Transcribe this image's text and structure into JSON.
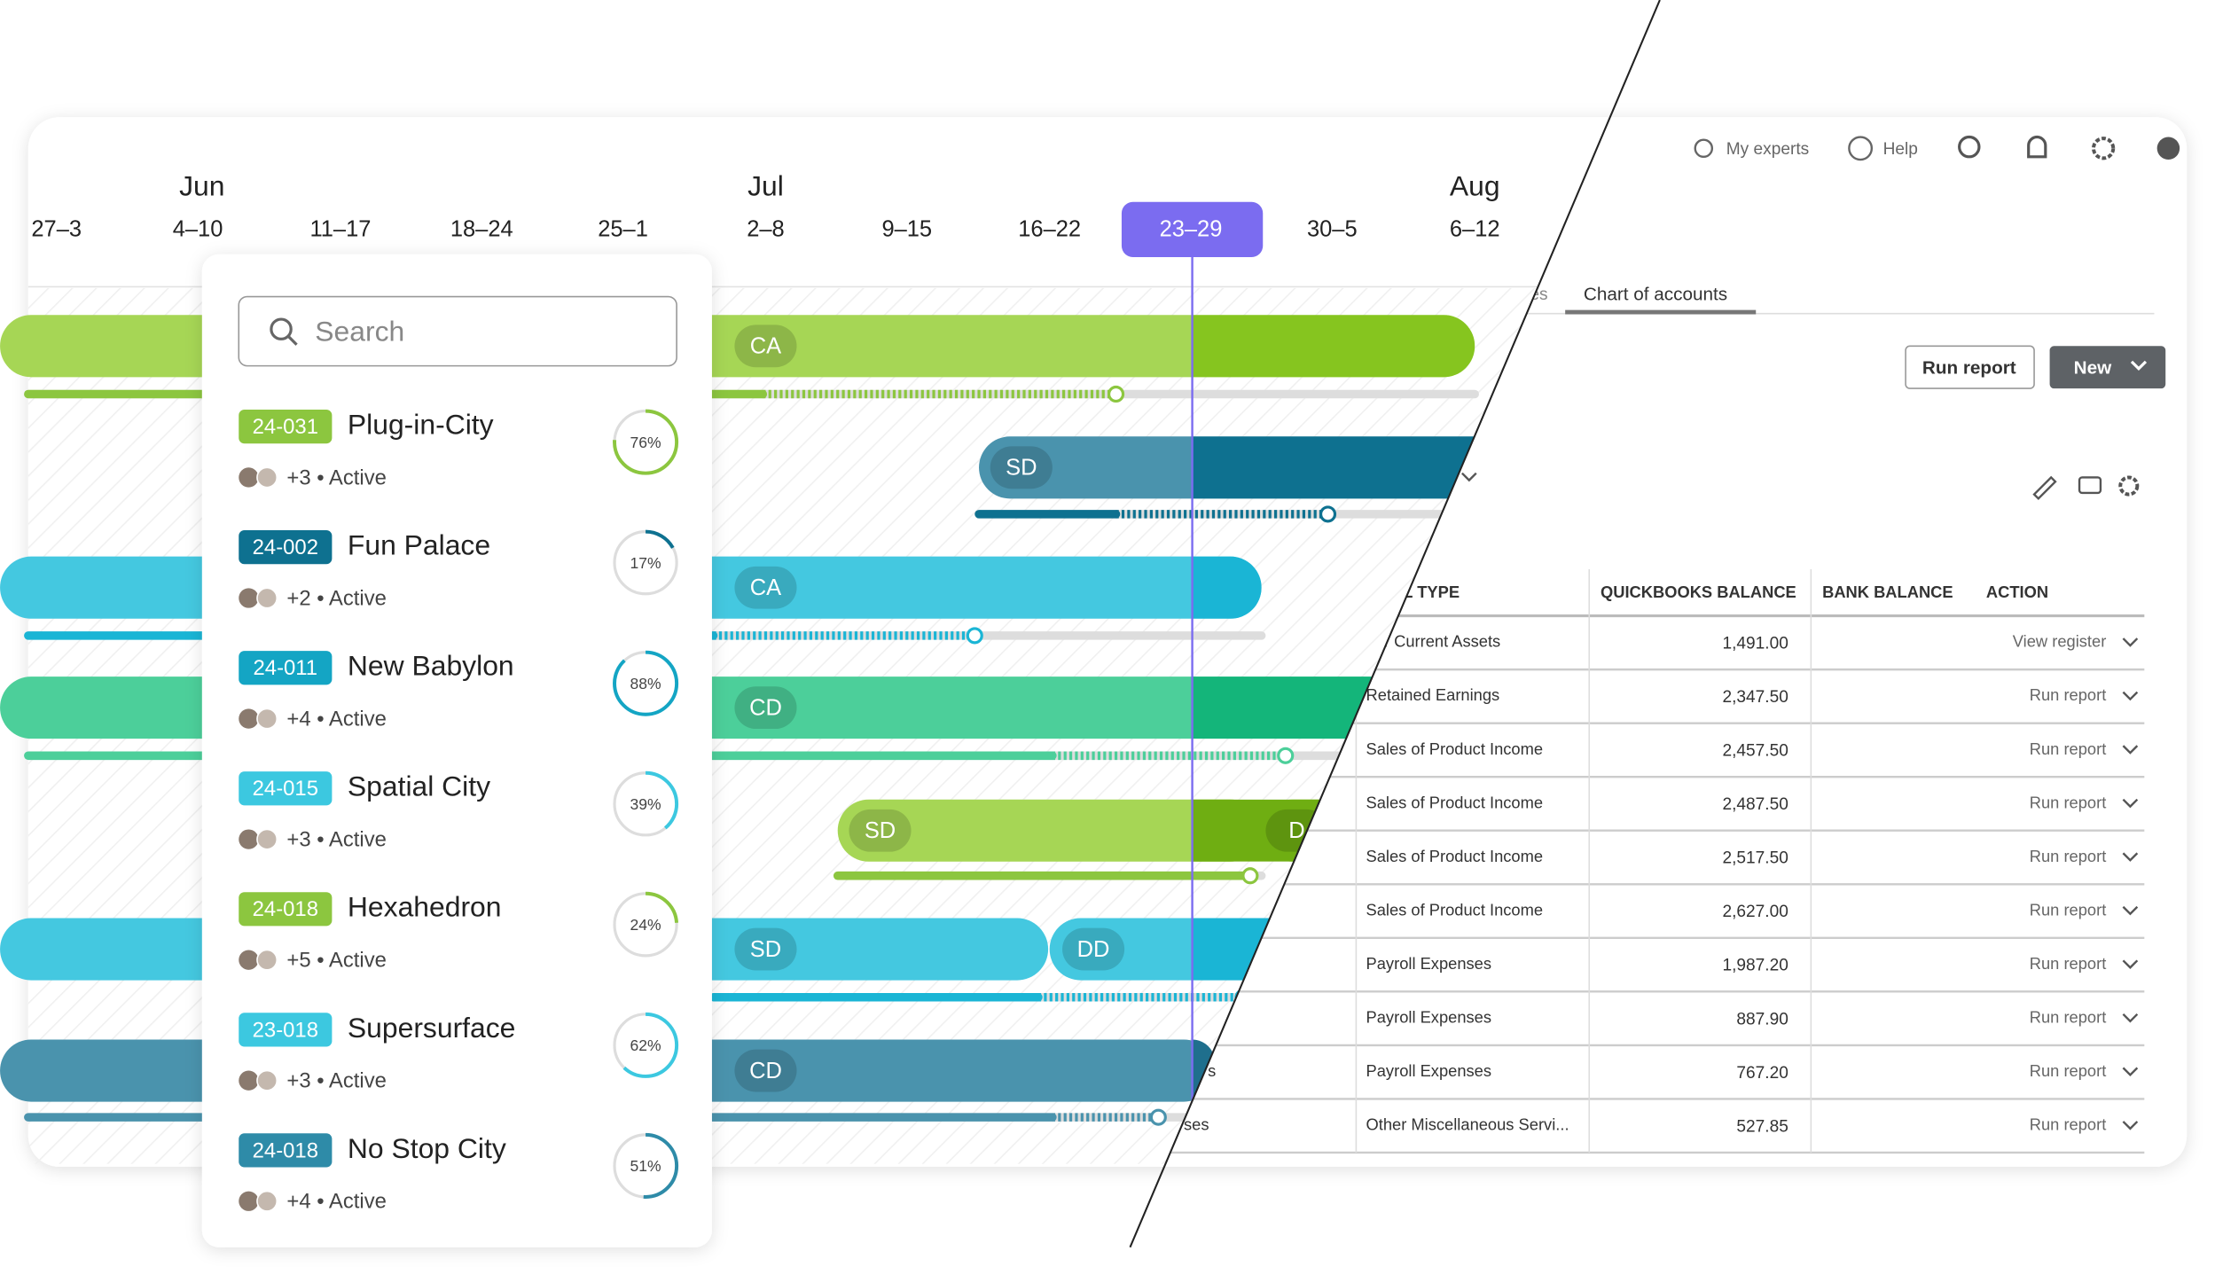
{
  "timeline": {
    "months": [
      "Jun",
      "Jul",
      "Aug"
    ],
    "weeks": [
      "27–3",
      "4–10",
      "11–17",
      "18–24",
      "25–1",
      "2–8",
      "9–15",
      "16–22",
      "23–29",
      "30–5",
      "6–12"
    ]
  },
  "gantt_labels": [
    "CA",
    "SD",
    "CA",
    "CD",
    "SD",
    "D",
    "SD",
    "DD",
    "CD"
  ],
  "search_placeholder": "Search",
  "projects": [
    {
      "code": "24-031",
      "name": "Plug-in-City",
      "meta": "+3 • Active",
      "progress": 76,
      "progress_label": "76%"
    },
    {
      "code": "24-002",
      "name": "Fun Palace",
      "meta": "+2 • Active",
      "progress": 17,
      "progress_label": "17%"
    },
    {
      "code": "24-011",
      "name": "New Babylon",
      "meta": "+4 • Active",
      "progress": 88,
      "progress_label": "88%"
    },
    {
      "code": "24-015",
      "name": "Spatial City",
      "meta": "+3 • Active",
      "progress": 39,
      "progress_label": "39%"
    },
    {
      "code": "24-018",
      "name": "Hexahedron",
      "meta": "+5 • Active",
      "progress": 24,
      "progress_label": "24%"
    },
    {
      "code": "23-018",
      "name": "Supersurface",
      "meta": "+3 • Active",
      "progress": 62,
      "progress_label": "62%"
    },
    {
      "code": "24-018",
      "name": "No Stop City",
      "meta": "+4 • Active",
      "progress": 51,
      "progress_label": "51%"
    }
  ],
  "toolbar": [
    "My experts",
    "Help"
  ],
  "tabs": [
    "es",
    "Chart of accounts"
  ],
  "buttons": {
    "run_report": "Run report",
    "new": "New"
  },
  "table": {
    "columns": [
      "IL TYPE",
      "QUICKBOOKS BALANCE",
      "BANK BALANCE",
      "ACTION"
    ],
    "rows": [
      [
        "ner Current Assets",
        "1,491.00",
        "View register"
      ],
      [
        "Retained Earnings",
        "2,347.50",
        "Run report"
      ],
      [
        "Sales of Product Income",
        "2,457.50",
        "Run report"
      ],
      [
        "Sales of Product Income",
        "2,487.50",
        "Run report"
      ],
      [
        "Sales of Product Income",
        "2,517.50",
        "Run report"
      ],
      [
        "Sales of Product Income",
        "2,627.00",
        "Run report"
      ],
      [
        "Payroll Expenses",
        "1,987.20",
        "Run report"
      ],
      [
        "Payroll Expenses",
        "887.90",
        "Run report"
      ],
      [
        "Payroll Expenses",
        "767.20",
        "Run report"
      ],
      [
        "Other Miscellaneous Servi...",
        "527.85",
        "Run report"
      ]
    ],
    "account_fragments": [
      "s",
      "ses"
    ]
  }
}
